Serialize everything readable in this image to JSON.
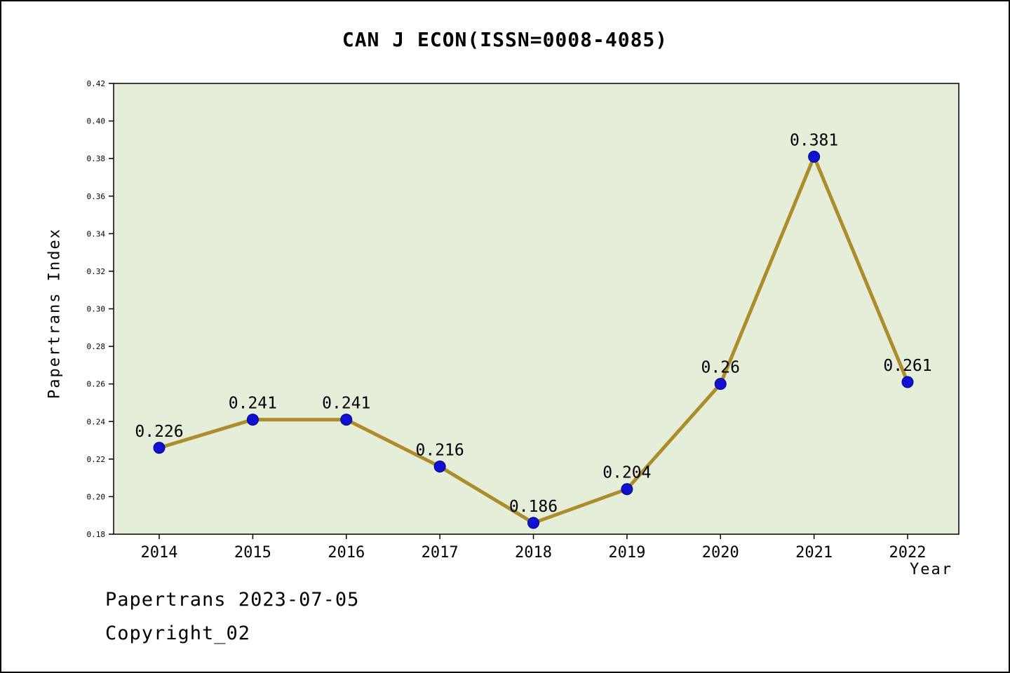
{
  "chart_data": {
    "type": "line",
    "title": "CAN J ECON(ISSN=0008-4085)",
    "xlabel": "Year",
    "ylabel": "Papertrans Index",
    "categories": [
      "2014",
      "2015",
      "2016",
      "2017",
      "2018",
      "2019",
      "2020",
      "2021",
      "2022"
    ],
    "series": [
      {
        "name": "Papertrans Index",
        "values": [
          0.226,
          0.241,
          0.241,
          0.216,
          0.186,
          0.204,
          0.26,
          0.381,
          0.261
        ],
        "point_labels": [
          "0.226",
          "0.241",
          "0.241",
          "0.216",
          "0.186",
          "0.204",
          "0.26",
          "0.381",
          "0.261"
        ]
      }
    ],
    "ylim": [
      0.18,
      0.42
    ],
    "ytick_step": 0.02,
    "grid": "off",
    "legend": "none",
    "colors": {
      "line": "#ab8d2c",
      "marker": "#1010d0",
      "plot_bg": "#e5eed8",
      "page_bg": "#ffffff",
      "axis": "#000000"
    }
  },
  "footer": {
    "line1": "Papertrans 2023-07-05",
    "line2": "Copyright_02"
  }
}
